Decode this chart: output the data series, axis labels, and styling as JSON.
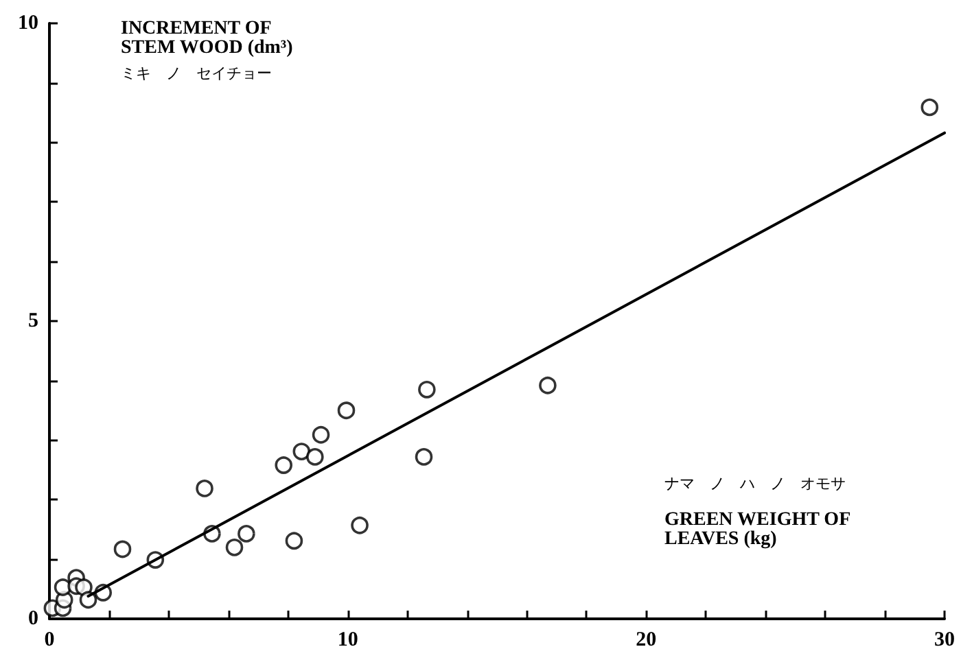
{
  "chart_data": {
    "type": "scatter",
    "xlabel": "GREEN WEIGHT OF\nLEAVES (kg)",
    "ylabel": "INCREMENT OF\nSTEM WOOD (dm³)",
    "annotations": [
      "ミキ　ノ　セイチョー",
      "ナマ　ノ　ハ　ノ　オモサ"
    ],
    "xlim": [
      0,
      30
    ],
    "ylim": [
      0,
      10
    ],
    "xticks": [
      0,
      {
        "value": 2,
        "label": null
      },
      {
        "value": 4,
        "label": null
      },
      {
        "value": 6,
        "label": null
      },
      {
        "value": 8,
        "label": null
      },
      10,
      {
        "value": 12,
        "label": null
      },
      {
        "value": 14,
        "label": null
      },
      {
        "value": 16,
        "label": null
      },
      {
        "value": 18,
        "label": null
      },
      20,
      {
        "value": 22,
        "label": null
      },
      {
        "value": 24,
        "label": null
      },
      {
        "value": 26,
        "label": null
      },
      {
        "value": 28,
        "label": null
      },
      30
    ],
    "yticks": [
      0,
      {
        "value": 1,
        "label": null
      },
      {
        "value": 2,
        "label": null
      },
      {
        "value": 3,
        "label": null
      },
      {
        "value": 4,
        "label": null
      },
      5,
      {
        "value": 6,
        "label": null
      },
      {
        "value": 7,
        "label": null
      },
      {
        "value": 8,
        "label": null
      },
      {
        "value": 9,
        "label": null
      },
      10
    ],
    "grid": false,
    "marker": "circle",
    "series": [
      {
        "color": "#000000",
        "x": [
          0.1,
          0.45,
          0.5,
          0.45,
          0.9,
          0.9,
          1.15,
          1.3,
          1.8,
          2.45,
          3.55,
          5.45,
          6.2,
          6.6,
          8.2,
          10.4,
          5.2,
          7.85,
          8.45,
          8.9,
          9.1,
          9.95,
          12.65,
          12.55,
          16.7,
          29.5
        ],
        "values": [
          0.18,
          0.18,
          0.32,
          0.53,
          0.69,
          0.55,
          0.53,
          0.32,
          0.44,
          1.17,
          0.99,
          1.43,
          1.2,
          1.43,
          1.31,
          1.57,
          2.19,
          2.58,
          2.81,
          2.72,
          3.09,
          3.5,
          3.85,
          2.72,
          3.92,
          8.59
        ]
      },
      {
        "type": "line",
        "color": "#000000",
        "marker": "none",
        "line_style": "solid",
        "x": [
          1.3,
          30
        ],
        "values": [
          0.38,
          8.16
        ]
      }
    ]
  }
}
